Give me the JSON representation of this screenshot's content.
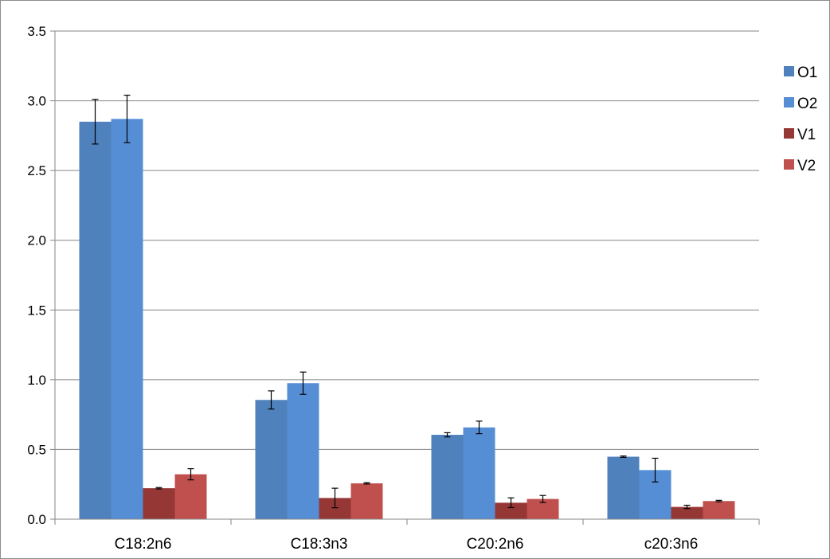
{
  "chart_data": {
    "type": "bar",
    "title": "",
    "xlabel": "",
    "ylabel": "",
    "ylim": [
      0,
      3.5
    ],
    "yticks": [
      "0.0",
      "0.5",
      "1.0",
      "1.5",
      "2.0",
      "2.5",
      "3.0",
      "3.5"
    ],
    "categories": [
      "C18:2n6",
      "C18:3n3",
      "C20:2n6",
      "c20:3n6"
    ],
    "grid": true,
    "legend_position": "right",
    "series": [
      {
        "name": "O1",
        "color": "#4f81bd",
        "values": [
          2.85,
          0.855,
          0.605,
          0.448
        ],
        "errors": [
          0.16,
          0.065,
          0.015,
          0.005
        ]
      },
      {
        "name": "O2",
        "color": "#558ed5",
        "values": [
          2.87,
          0.975,
          0.658,
          0.352
        ],
        "errors": [
          0.17,
          0.08,
          0.045,
          0.085
        ]
      },
      {
        "name": "V1",
        "color": "#953735",
        "values": [
          0.222,
          0.152,
          0.118,
          0.088
        ],
        "errors": [
          0.005,
          0.07,
          0.035,
          0.012
        ]
      },
      {
        "name": "V2",
        "color": "#c0504d",
        "values": [
          0.322,
          0.257,
          0.145,
          0.13
        ],
        "errors": [
          0.04,
          0.005,
          0.025,
          0.005
        ]
      }
    ]
  }
}
